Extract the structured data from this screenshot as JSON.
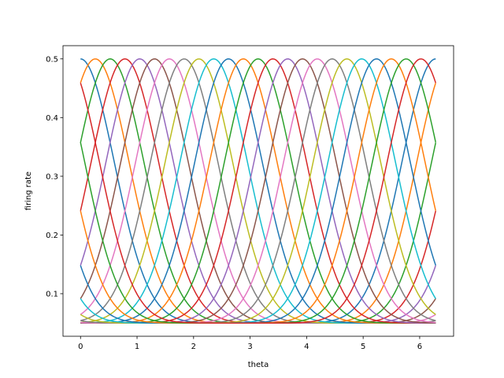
{
  "chart_data": {
    "type": "line",
    "title": "",
    "xlabel": "theta",
    "ylabel": "firing rate",
    "xlim": [
      -0.31,
      6.6
    ],
    "ylim": [
      0.0275,
      0.5225
    ],
    "x_range": [
      0,
      6.283
    ],
    "x_ticks": [
      "0",
      "1",
      "2",
      "3",
      "4",
      "5",
      "6"
    ],
    "y_ticks": [
      "0.1",
      "0.2",
      "0.3",
      "0.4",
      "0.5"
    ],
    "grid": false,
    "legend": "none",
    "tuning": {
      "baseline": 0.05,
      "amplitude": 0.45,
      "width_sigma": 0.6
    },
    "series": [
      {
        "preferred": 0.0
      },
      {
        "preferred": 0.262
      },
      {
        "preferred": 0.524
      },
      {
        "preferred": 0.785
      },
      {
        "preferred": 1.047
      },
      {
        "preferred": 1.309
      },
      {
        "preferred": 1.571
      },
      {
        "preferred": 1.833
      },
      {
        "preferred": 2.094
      },
      {
        "preferred": 2.356
      },
      {
        "preferred": 2.618
      },
      {
        "preferred": 2.88
      },
      {
        "preferred": 3.142
      },
      {
        "preferred": 3.403
      },
      {
        "preferred": 3.665
      },
      {
        "preferred": 3.927
      },
      {
        "preferred": 4.189
      },
      {
        "preferred": 4.451
      },
      {
        "preferred": 4.712
      },
      {
        "preferred": 4.974
      },
      {
        "preferred": 5.236
      },
      {
        "preferred": 5.498
      },
      {
        "preferred": 5.76
      },
      {
        "preferred": 6.021
      }
    ],
    "colors": [
      "#1f77b4",
      "#ff7f0e",
      "#2ca02c",
      "#d62728",
      "#9467bd",
      "#8c564b",
      "#e377c2",
      "#7f7f7f",
      "#bcbd22",
      "#17becf"
    ]
  }
}
